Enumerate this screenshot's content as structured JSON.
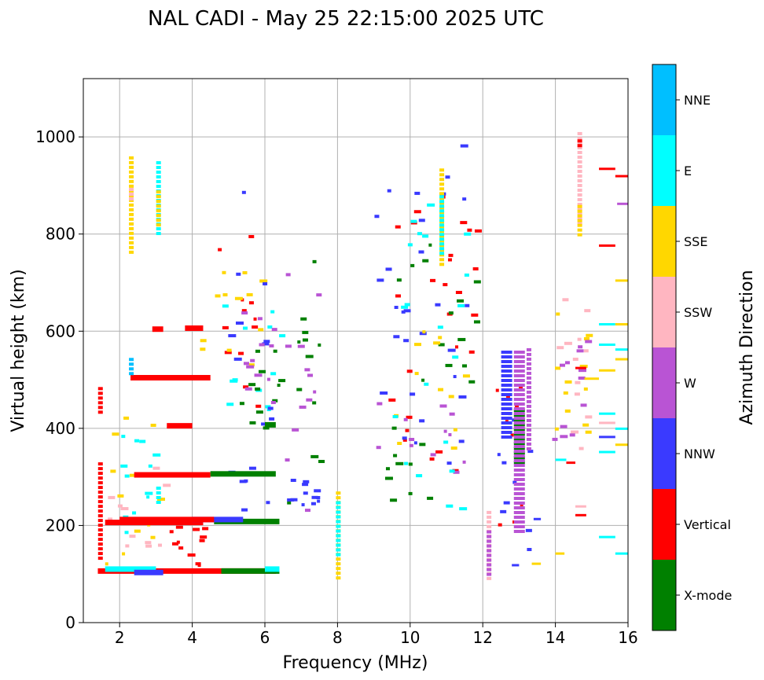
{
  "chart_data": {
    "type": "scatter",
    "title": "NAL CADI - May 25 22:15:00 2025 UTC",
    "xlabel": "Frequency (MHz)",
    "ylabel": "Virtual height (km)",
    "xlim": [
      1,
      16
    ],
    "ylim": [
      0,
      1120
    ],
    "xticks": [
      "2",
      "4",
      "6",
      "8",
      "10",
      "12",
      "14",
      "16"
    ],
    "yticks": [
      "0",
      "200",
      "400",
      "600",
      "800",
      "1000"
    ],
    "grid": true,
    "colorbar": {
      "label": "Azimuth Direction",
      "categories": [
        {
          "name": "X-mode",
          "color": "#008000"
        },
        {
          "name": "Vertical",
          "color": "#ff0000"
        },
        {
          "name": "NNW",
          "color": "#3a3aff"
        },
        {
          "name": "W",
          "color": "#b954d4"
        },
        {
          "name": "SSW",
          "color": "#ffb6c1"
        },
        {
          "name": "SSE",
          "color": "#ffd700"
        },
        {
          "name": "E",
          "color": "#00ffff"
        },
        {
          "name": "NNE",
          "color": "#00bfff"
        }
      ]
    },
    "runs": [
      {
        "d": "Vertical",
        "x": [
          1.4,
          6.3
        ],
        "y": 107
      },
      {
        "d": "X-mode",
        "x": [
          4.8,
          6.4
        ],
        "y": 107
      },
      {
        "d": "E",
        "x": [
          1.6,
          3.0
        ],
        "y": 111
      },
      {
        "d": "NNW",
        "x": [
          2.4,
          3.2
        ],
        "y": 104
      },
      {
        "d": "E",
        "x": [
          6.0,
          6.4
        ],
        "y": 111
      },
      {
        "d": "Vertical",
        "x": [
          1.6,
          4.3
        ],
        "y": 207
      },
      {
        "d": "X-mode",
        "x": [
          4.6,
          6.4
        ],
        "y": 209
      },
      {
        "d": "NNW",
        "x": [
          4.0,
          5.4
        ],
        "y": 213
      },
      {
        "d": "Vertical",
        "x": [
          2.0,
          4.6
        ],
        "y": 213
      },
      {
        "d": "Vertical",
        "x": [
          2.4,
          4.5
        ],
        "y": 305
      },
      {
        "d": "X-mode",
        "x": [
          4.5,
          6.3
        ],
        "y": 307
      },
      {
        "d": "Vertical",
        "x": [
          3.3,
          4.0
        ],
        "y": 406
      },
      {
        "d": "X-mode",
        "x": [
          6.0,
          6.3
        ],
        "y": 408
      },
      {
        "d": "Vertical",
        "x": [
          2.3,
          4.5
        ],
        "y": 505
      },
      {
        "d": "Vertical",
        "x": [
          3.8,
          4.3
        ],
        "y": 607
      },
      {
        "d": "Vertical",
        "x": [
          2.9,
          3.2
        ],
        "y": 605
      }
    ],
    "columns": [
      {
        "d": "Vertical",
        "x": 1.45,
        "y": [
          130,
          330
        ]
      },
      {
        "d": "Vertical",
        "x": 1.45,
        "y": [
          430,
          485
        ]
      },
      {
        "d": "SSE",
        "x": 2.3,
        "y": [
          760,
          960
        ]
      },
      {
        "d": "SSW",
        "x": 2.3,
        "y": [
          870,
          895
        ]
      },
      {
        "d": "NNE",
        "x": 2.3,
        "y": [
          510,
          545
        ]
      },
      {
        "d": "E",
        "x": 3.05,
        "y": [
          800,
          950
        ]
      },
      {
        "d": "SSE",
        "x": 3.05,
        "y": [
          820,
          890
        ]
      },
      {
        "d": "E",
        "x": 3.05,
        "y": [
          250,
          280
        ]
      },
      {
        "d": "SSE",
        "x": 8.0,
        "y": [
          90,
          270
        ]
      },
      {
        "d": "E",
        "x": 8.0,
        "y": [
          140,
          250
        ]
      },
      {
        "d": "SSE",
        "x": 10.85,
        "y": [
          740,
          935
        ]
      },
      {
        "d": "E",
        "x": 10.85,
        "y": [
          760,
          880
        ]
      },
      {
        "d": "SSW",
        "x": 12.15,
        "y": [
          90,
          230
        ]
      },
      {
        "d": "W",
        "x": 12.15,
        "y": [
          100,
          190
        ]
      },
      {
        "d": "X-mode",
        "x": 12.9,
        "y": [
          330,
          440
        ]
      },
      {
        "d": "W",
        "x": 12.9,
        "y": [
          185,
          560
        ]
      },
      {
        "d": "NNW",
        "x": 12.55,
        "y": [
          380,
          560
        ]
      },
      {
        "d": "W",
        "x": 13.25,
        "y": [
          360,
          565
        ]
      },
      {
        "d": "SSW",
        "x": 14.65,
        "y": [
          820,
          1010
        ]
      },
      {
        "d": "Vertical",
        "x": 14.65,
        "y": [
          985,
          995
        ]
      },
      {
        "d": "SSE",
        "x": 14.65,
        "y": [
          800,
          860
        ]
      }
    ],
    "segments": [
      {
        "d": "Vertical",
        "x": [
          15.2,
          15.65
        ],
        "y": 935
      },
      {
        "d": "Vertical",
        "x": [
          15.65,
          16.0
        ],
        "y": 920
      },
      {
        "d": "W",
        "x": [
          15.7,
          16.0
        ],
        "y": 863
      },
      {
        "d": "Vertical",
        "x": [
          15.2,
          15.65
        ],
        "y": 777
      },
      {
        "d": "SSE",
        "x": [
          15.65,
          16.0
        ],
        "y": 705
      },
      {
        "d": "E",
        "x": [
          15.2,
          15.65
        ],
        "y": 615
      },
      {
        "d": "SSE",
        "x": [
          15.65,
          16.0
        ],
        "y": 615
      },
      {
        "d": "E",
        "x": [
          15.2,
          15.65
        ],
        "y": 573
      },
      {
        "d": "E",
        "x": [
          15.65,
          16.0
        ],
        "y": 563
      },
      {
        "d": "SSE",
        "x": [
          15.2,
          15.65
        ],
        "y": 520
      },
      {
        "d": "SSE",
        "x": [
          15.65,
          16.0
        ],
        "y": 543
      },
      {
        "d": "SSE",
        "x": [
          14.8,
          15.2
        ],
        "y": 503
      },
      {
        "d": "E",
        "x": [
          15.2,
          15.65
        ],
        "y": 431
      },
      {
        "d": "SSW",
        "x": [
          15.2,
          15.65
        ],
        "y": 412
      },
      {
        "d": "E",
        "x": [
          15.65,
          16.0
        ],
        "y": 400
      },
      {
        "d": "NNW",
        "x": [
          15.2,
          15.65
        ],
        "y": 383
      },
      {
        "d": "SSE",
        "x": [
          15.65,
          16.0
        ],
        "y": 367
      },
      {
        "d": "E",
        "x": [
          15.2,
          15.65
        ],
        "y": 352
      },
      {
        "d": "E",
        "x": [
          15.2,
          15.65
        ],
        "y": 177
      },
      {
        "d": "E",
        "x": [
          15.65,
          16.0
        ],
        "y": 143
      },
      {
        "d": "SSE",
        "x": [
          14.0,
          14.25
        ],
        "y": 143
      },
      {
        "d": "SSE",
        "x": [
          13.35,
          13.6
        ],
        "y": 122
      },
      {
        "d": "NNW",
        "x": [
          13.4,
          13.6
        ],
        "y": 214
      },
      {
        "d": "NNW",
        "x": [
          12.8,
          13.0
        ],
        "y": 119
      },
      {
        "d": "Vertical",
        "x": [
          14.55,
          14.85
        ],
        "y": 222
      },
      {
        "d": "SSW",
        "x": [
          14.55,
          14.85
        ],
        "y": 240
      },
      {
        "d": "Vertical",
        "x": [
          14.3,
          14.55
        ],
        "y": 330
      },
      {
        "d": "E",
        "x": [
          14.0,
          14.3
        ],
        "y": 336
      },
      {
        "d": "Vertical",
        "x": [
          14.55,
          14.85
        ],
        "y": 525
      }
    ],
    "scatter": [
      {
        "d": "E",
        "x": [
          4.5,
          6.4
        ],
        "y": [
          390,
          690
        ]
      },
      {
        "d": "X-mode",
        "x": [
          5.3,
          6.4
        ],
        "y": [
          380,
          640
        ]
      },
      {
        "d": "Vertical",
        "x": [
          4.6,
          5.8
        ],
        "y": [
          360,
          800
        ]
      },
      {
        "d": "SSE",
        "x": [
          4.2,
          6.2
        ],
        "y": [
          500,
          760
        ]
      },
      {
        "d": "NNW",
        "x": [
          4.8,
          6.4
        ],
        "y": [
          230,
          900
        ]
      },
      {
        "d": "W",
        "x": [
          5.0,
          6.2
        ],
        "y": [
          450,
          650
        ]
      },
      {
        "d": "Vertical",
        "x": [
          9.3,
          11.8
        ],
        "y": [
          300,
          940
        ]
      },
      {
        "d": "X-mode",
        "x": [
          9.3,
          11.8
        ],
        "y": [
          240,
          830
        ]
      },
      {
        "d": "NNW",
        "x": [
          9.0,
          11.6
        ],
        "y": [
          320,
          1010
        ]
      },
      {
        "d": "W",
        "x": [
          9.0,
          11.6
        ],
        "y": [
          310,
          460
        ]
      },
      {
        "d": "SSE",
        "x": [
          9.5,
          11.5
        ],
        "y": [
          330,
          640
        ]
      },
      {
        "d": "E",
        "x": [
          9.5,
          11.5
        ],
        "y": [
          230,
          870
        ]
      },
      {
        "d": "SSW",
        "x": [
          13.9,
          14.9
        ],
        "y": [
          340,
          680
        ]
      },
      {
        "d": "SSE",
        "x": [
          13.9,
          14.9
        ],
        "y": [
          380,
          660
        ]
      },
      {
        "d": "W",
        "x": [
          13.9,
          14.9
        ],
        "y": [
          380,
          620
        ]
      },
      {
        "d": "NNW",
        "x": [
          12.3,
          13.3
        ],
        "y": [
          120,
          560
        ]
      },
      {
        "d": "Vertical",
        "x": [
          12.3,
          13.3
        ],
        "y": [
          200,
          520
        ]
      },
      {
        "d": "SSE",
        "x": [
          1.6,
          3.3
        ],
        "y": [
          120,
          460
        ]
      },
      {
        "d": "SSW",
        "x": [
          1.6,
          3.3
        ],
        "y": [
          120,
          330
        ]
      },
      {
        "d": "E",
        "x": [
          2.0,
          3.2
        ],
        "y": [
          130,
          460
        ]
      },
      {
        "d": "Vertical",
        "x": [
          3.3,
          4.3
        ],
        "y": [
          120,
          200
        ]
      },
      {
        "d": "X-mode",
        "x": [
          6.5,
          7.5
        ],
        "y": [
          230,
          780
        ]
      },
      {
        "d": "W",
        "x": [
          6.5,
          7.5
        ],
        "y": [
          230,
          760
        ]
      },
      {
        "d": "NNW",
        "x": [
          6.5,
          7.5
        ],
        "y": [
          230,
          300
        ]
      }
    ]
  }
}
